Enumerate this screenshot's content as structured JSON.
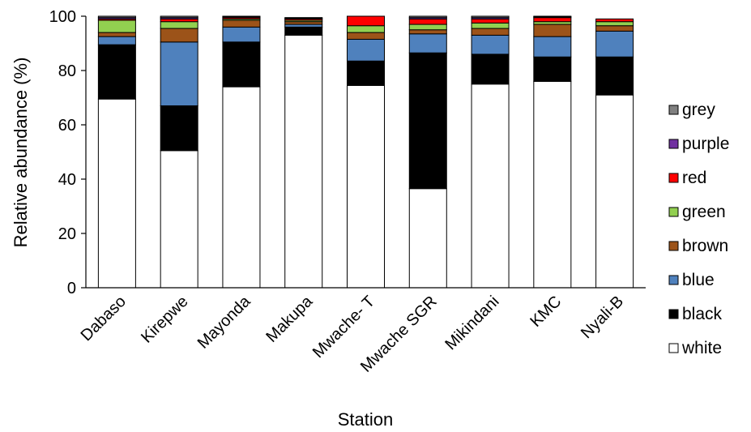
{
  "chart_data": {
    "type": "bar",
    "stacked": true,
    "xlabel": "Station",
    "ylabel": "Relative abundance  (%)",
    "ylim": [
      0,
      100
    ],
    "yticks": [
      "0",
      "20",
      "40",
      "60",
      "80",
      "100"
    ],
    "categories": [
      "Dabaso",
      "Kirepwe",
      "Mayonda",
      "Makupa",
      "Mwache- T",
      "Mwache SGR",
      "Mikindani",
      "KMC",
      "Nyali-B"
    ],
    "legend_position": "right",
    "series": [
      {
        "name": "white",
        "color": "#ffffff",
        "values": [
          69.5,
          50.5,
          74,
          93,
          74.5,
          36.5,
          75,
          76,
          71
        ]
      },
      {
        "name": "black",
        "color": "#000000",
        "values": [
          20,
          16.5,
          16.5,
          3,
          9,
          50,
          11,
          9,
          14
        ]
      },
      {
        "name": "blue",
        "color": "#4f81bd",
        "values": [
          3,
          23.5,
          5.5,
          1,
          8,
          7,
          7,
          7.5,
          9.5
        ]
      },
      {
        "name": "brown",
        "color": "#9c5319",
        "values": [
          1.5,
          5,
          2.5,
          1,
          2.5,
          1.5,
          2.5,
          4.5,
          2
        ]
      },
      {
        "name": "green",
        "color": "#92d050",
        "values": [
          4.5,
          2.5,
          0.5,
          0.5,
          2.5,
          2,
          2,
          1,
          1.5
        ]
      },
      {
        "name": "red",
        "color": "#ff0000",
        "values": [
          0.5,
          1,
          0.5,
          0.5,
          3.5,
          2,
          1.5,
          1.5,
          1
        ]
      },
      {
        "name": "purple",
        "color": "#7030a0",
        "values": [
          0.5,
          0.5,
          0.3,
          0.3,
          0,
          0.5,
          0.5,
          0.3,
          0
        ]
      },
      {
        "name": "grey",
        "color": "#808080",
        "values": [
          0.5,
          0.5,
          0.2,
          0.2,
          0,
          0.5,
          0.5,
          0.2,
          0
        ]
      }
    ]
  }
}
